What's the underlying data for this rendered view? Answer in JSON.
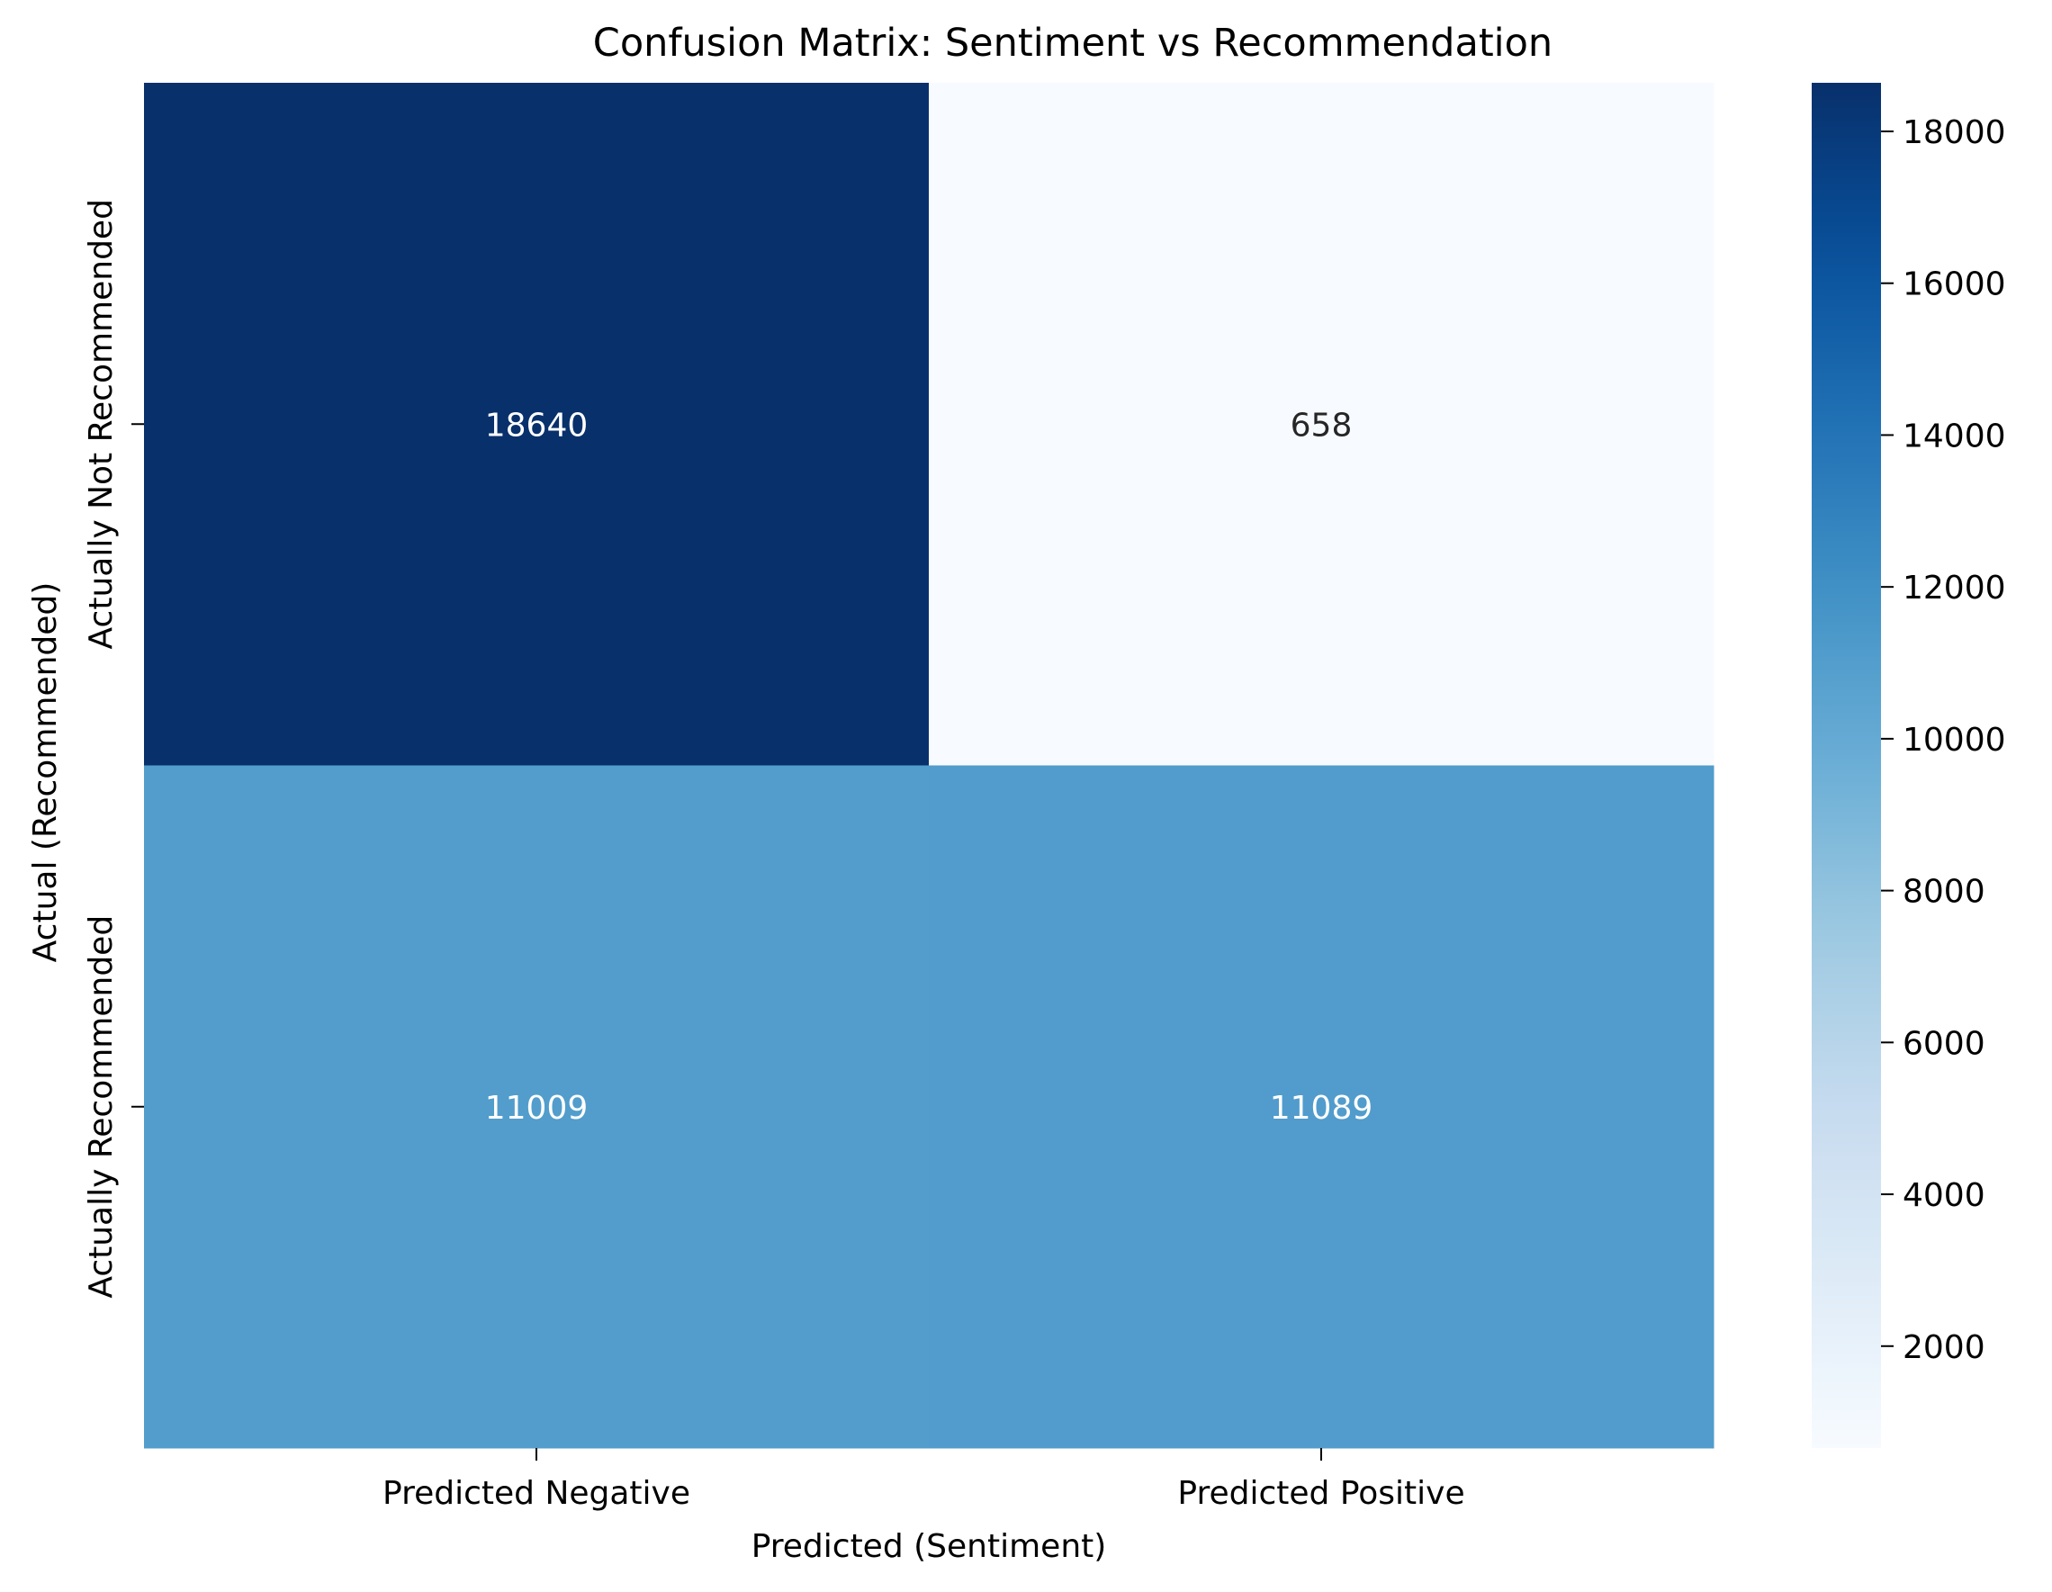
{
  "chart_data": {
    "type": "heatmap",
    "title": "Confusion Matrix: Sentiment vs Recommendation",
    "xlabel": "Predicted (Sentiment)",
    "ylabel": "Actual (Recommended)",
    "x_categories": [
      "Predicted Negative",
      "Predicted Positive"
    ],
    "y_categories": [
      "Actually Not Recommended",
      "Actually Recommended"
    ],
    "values": [
      [
        18640,
        658
      ],
      [
        11009,
        11089
      ]
    ],
    "colormap": "Blues",
    "colorbar": {
      "min": 658,
      "max": 18640,
      "ticks": [
        2000,
        4000,
        6000,
        8000,
        10000,
        12000,
        14000,
        16000,
        18000
      ]
    },
    "annotations": true,
    "grid": false
  }
}
